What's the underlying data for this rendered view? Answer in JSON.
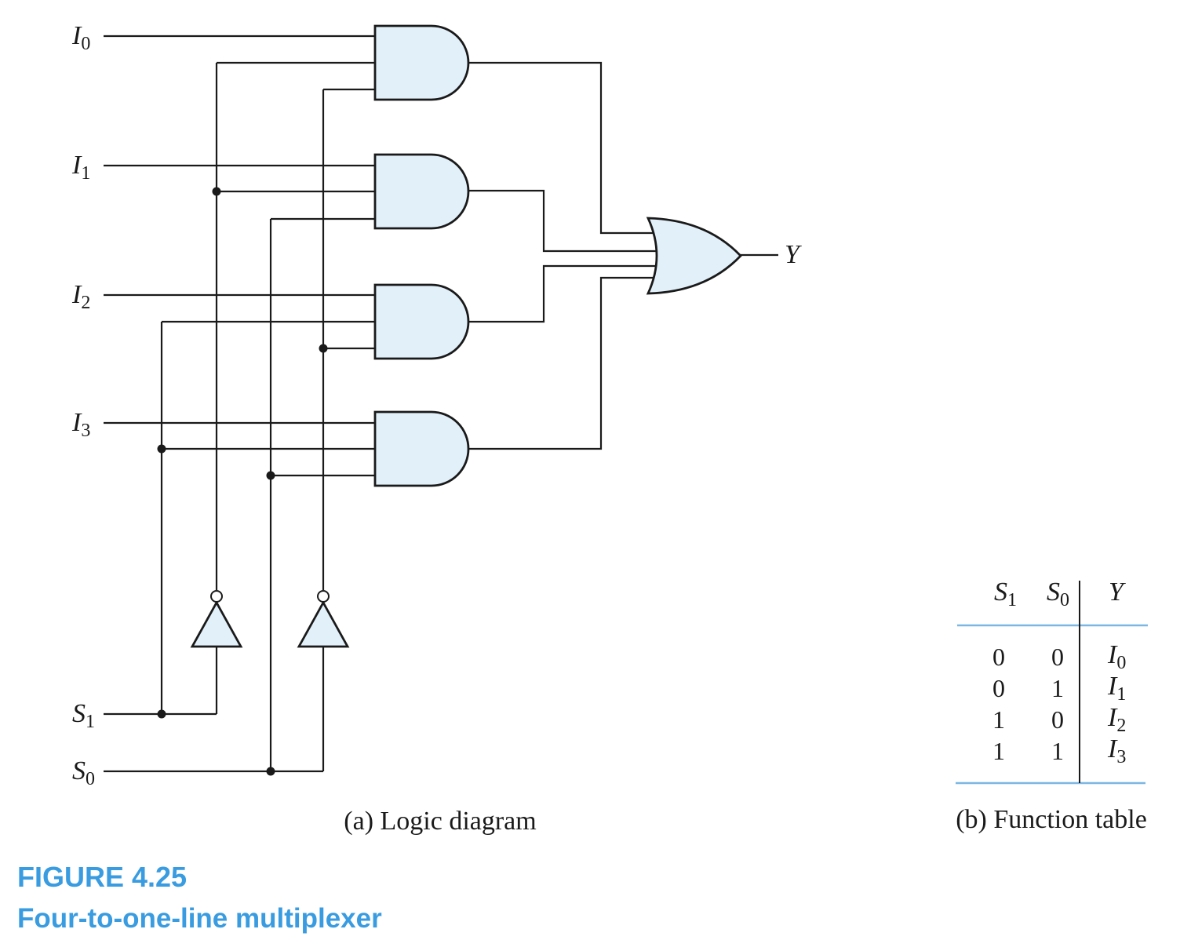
{
  "signals": {
    "inputs": [
      {
        "letter": "I",
        "sub": "0"
      },
      {
        "letter": "I",
        "sub": "1"
      },
      {
        "letter": "I",
        "sub": "2"
      },
      {
        "letter": "I",
        "sub": "3"
      }
    ],
    "selects": [
      {
        "letter": "S",
        "sub": "1"
      },
      {
        "letter": "S",
        "sub": "0"
      }
    ],
    "output": "Y"
  },
  "function_table": {
    "headers": [
      {
        "letter": "S",
        "sub": "1"
      },
      {
        "letter": "S",
        "sub": "0"
      },
      {
        "letter": "Y",
        "sub": ""
      }
    ],
    "rows": [
      {
        "s1": "0",
        "s0": "0",
        "y_letter": "I",
        "y_sub": "0"
      },
      {
        "s1": "0",
        "s0": "1",
        "y_letter": "I",
        "y_sub": "1"
      },
      {
        "s1": "1",
        "s0": "0",
        "y_letter": "I",
        "y_sub": "2"
      },
      {
        "s1": "1",
        "s0": "1",
        "y_letter": "I",
        "y_sub": "3"
      }
    ]
  },
  "captions": {
    "diagram": "(a) Logic diagram",
    "table": "(b) Function table"
  },
  "figure": {
    "number": "FIGURE 4.25",
    "title": "Four-to-one-line multiplexer"
  },
  "colors": {
    "gate_fill": "#e2f0fa",
    "accent": "#3a9ce0",
    "table_rule": "#7cb6e3"
  }
}
